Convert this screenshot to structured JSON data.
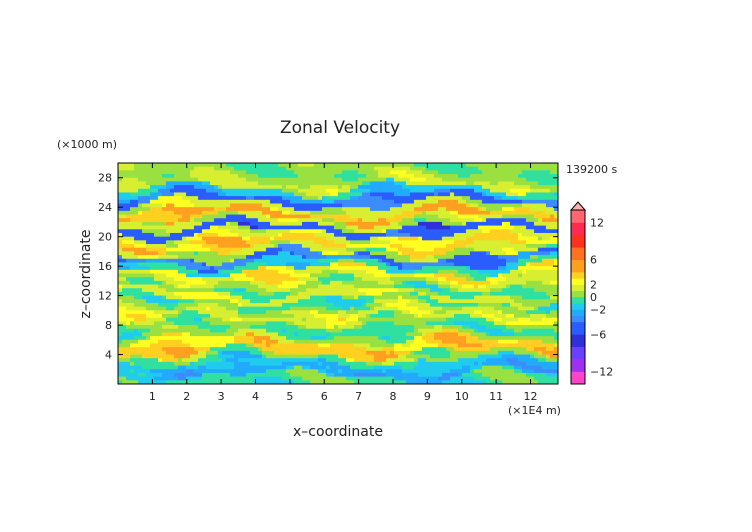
{
  "chart_data": {
    "type": "heatmap",
    "title": "Zonal Velocity",
    "xlabel": "x–coordinate",
    "ylabel": "z–coordinate",
    "x_unit": "(×1E4 m)",
    "y_unit": "(×1000 m)",
    "time_label": "139200 s",
    "xlim": [
      0,
      12.8
    ],
    "ylim": [
      0,
      30
    ],
    "x_ticks": [
      1,
      2,
      3,
      4,
      5,
      6,
      7,
      8,
      9,
      10,
      11,
      12
    ],
    "y_ticks": [
      4,
      8,
      12,
      16,
      20,
      24,
      28
    ],
    "colorbar": {
      "ticks": [
        "12",
        "6",
        "2",
        "0",
        "−2",
        "−6",
        "−12"
      ],
      "tick_values": [
        12,
        6,
        2,
        0,
        -2,
        -6,
        -12
      ],
      "levels": [
        -14,
        -12,
        -10,
        -8,
        -6,
        -4,
        -3,
        -2,
        -1,
        0,
        1,
        2,
        3,
        4,
        6,
        8,
        10,
        12,
        14
      ],
      "colors": [
        "#ff44cc",
        "#a030f0",
        "#6a40ff",
        "#3030d8",
        "#2a5cff",
        "#3a8cff",
        "#22aaff",
        "#20ccee",
        "#30e0a0",
        "#9ae040",
        "#d8ee30",
        "#ffff22",
        "#ffd020",
        "#ffa020",
        "#ff7020",
        "#ff3020",
        "#ff2a50",
        "#ff6670",
        "#ffb0b0"
      ]
    },
    "field_bands": [
      {
        "z": 0.7,
        "value": -0.5
      },
      {
        "z": 1.7,
        "value": -2.5
      },
      {
        "z": 2.7,
        "value": -1.5
      },
      {
        "z": 3.7,
        "value": 0.5
      },
      {
        "z": 4.6,
        "value": 3.5
      },
      {
        "z": 5.5,
        "value": 3
      },
      {
        "z": 6.4,
        "value": 0.5
      },
      {
        "z": 7.3,
        "value": -0.5
      },
      {
        "z": 8.2,
        "value": 0.5
      },
      {
        "z": 9.1,
        "value": 2
      },
      {
        "z": 10.0,
        "value": 1
      },
      {
        "z": 11.0,
        "value": -0.5
      },
      {
        "z": 12.0,
        "value": 1.5
      },
      {
        "z": 13.0,
        "value": 0
      },
      {
        "z": 14.0,
        "value": 1.5
      },
      {
        "z": 15.0,
        "value": 2.5
      },
      {
        "z": 16.0,
        "value": -1
      },
      {
        "z": 17.0,
        "value": -4
      },
      {
        "z": 18.0,
        "value": 1
      },
      {
        "z": 19.0,
        "value": 3.5
      },
      {
        "z": 20.0,
        "value": 2
      },
      {
        "z": 21.0,
        "value": -5
      },
      {
        "z": 22.0,
        "value": 1
      },
      {
        "z": 23.0,
        "value": 4
      },
      {
        "z": 24.0,
        "value": 1.5
      },
      {
        "z": 25.0,
        "value": -4
      },
      {
        "z": 26.0,
        "value": -1.5
      },
      {
        "z": 27.0,
        "value": 1
      },
      {
        "z": 28.0,
        "value": 0.5
      },
      {
        "z": 29.0,
        "value": 0.3
      }
    ]
  }
}
